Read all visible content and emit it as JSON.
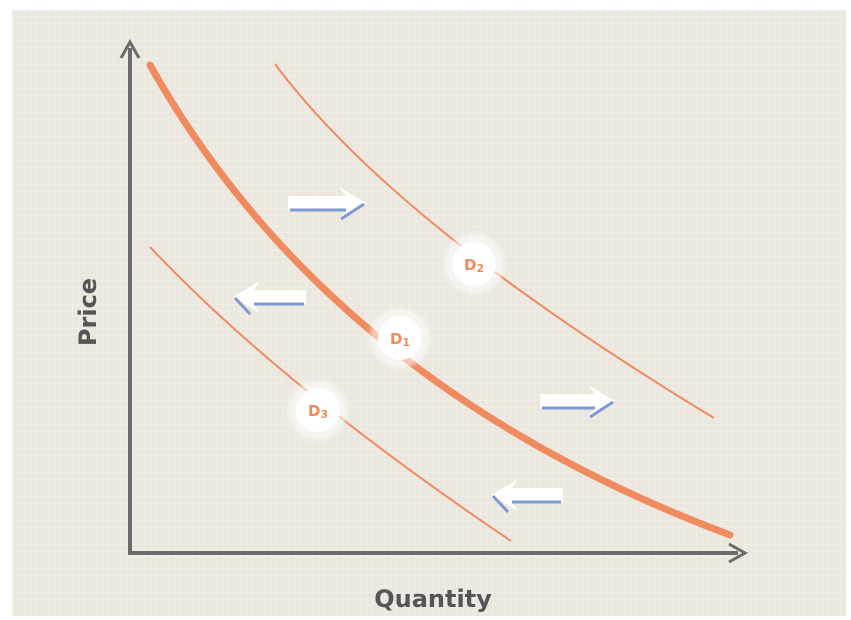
{
  "axes": {
    "x_label": "Quantity",
    "y_label": "Price"
  },
  "curves": [
    {
      "id": "D1",
      "letter": "D",
      "subscript": "1",
      "role": "original"
    },
    {
      "id": "D2",
      "letter": "D",
      "subscript": "2",
      "role": "shift-right"
    },
    {
      "id": "D3",
      "letter": "D",
      "subscript": "3",
      "role": "shift-left"
    }
  ],
  "arrows": [
    {
      "direction": "right"
    },
    {
      "direction": "left"
    },
    {
      "direction": "right"
    },
    {
      "direction": "left"
    }
  ],
  "colors": {
    "background": "#ebe6de",
    "axis": "#6b6b6b",
    "curve": "#ef8b5f",
    "arrow_fill": "#ffffff",
    "arrow_edge": "#7d9ad6",
    "label_text": "#ee8a5e"
  }
}
